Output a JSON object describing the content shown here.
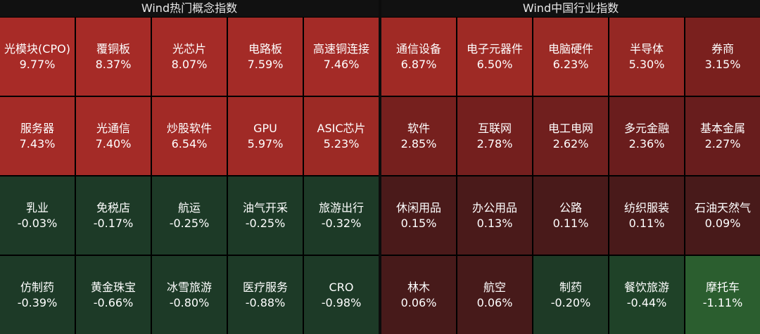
{
  "panels": [
    {
      "title": "Wind热门概念指数",
      "tiles": [
        {
          "label": "光模块(CPO)",
          "value": "9.77%",
          "color": "#a82b27"
        },
        {
          "label": "覆铜板",
          "value": "8.37%",
          "color": "#a62b27"
        },
        {
          "label": "光芯片",
          "value": "8.07%",
          "color": "#a52b27"
        },
        {
          "label": "电路板",
          "value": "7.59%",
          "color": "#a42b27"
        },
        {
          "label": "高速铜连接",
          "value": "7.46%",
          "color": "#a42b27"
        },
        {
          "label": "服务器",
          "value": "7.43%",
          "color": "#a42b27"
        },
        {
          "label": "光通信",
          "value": "7.40%",
          "color": "#a42b27"
        },
        {
          "label": "炒股软件",
          "value": "6.54%",
          "color": "#a22a26"
        },
        {
          "label": "GPU",
          "value": "5.97%",
          "color": "#a02a26"
        },
        {
          "label": "ASIC芯片",
          "value": "5.23%",
          "color": "#9c2a25"
        },
        {
          "label": "乳业",
          "value": "-0.03%",
          "color": "#1d3a27"
        },
        {
          "label": "免税店",
          "value": "-0.17%",
          "color": "#1d3a27"
        },
        {
          "label": "航运",
          "value": "-0.25%",
          "color": "#1d3a27"
        },
        {
          "label": "油气开采",
          "value": "-0.25%",
          "color": "#1d3a27"
        },
        {
          "label": "旅游出行",
          "value": "-0.32%",
          "color": "#1d3a27"
        },
        {
          "label": "仿制药",
          "value": "-0.39%",
          "color": "#1d3a27"
        },
        {
          "label": "黄金珠宝",
          "value": "-0.66%",
          "color": "#1d3a27"
        },
        {
          "label": "冰雪旅游",
          "value": "-0.80%",
          "color": "#1d3a27"
        },
        {
          "label": "医疗服务",
          "value": "-0.88%",
          "color": "#1d3a27"
        },
        {
          "label": "CRO",
          "value": "-0.98%",
          "color": "#1d3a27"
        }
      ]
    },
    {
      "title": "Wind中国行业指数",
      "tiles": [
        {
          "label": "通信设备",
          "value": "6.87%",
          "color": "#a02a25"
        },
        {
          "label": "电子元器件",
          "value": "6.50%",
          "color": "#9e2a25"
        },
        {
          "label": "电脑硬件",
          "value": "6.23%",
          "color": "#9b2a25"
        },
        {
          "label": "半导体",
          "value": "5.30%",
          "color": "#952824"
        },
        {
          "label": "券商",
          "value": "3.15%",
          "color": "#7a201e"
        },
        {
          "label": "软件",
          "value": "2.85%",
          "color": "#76201e"
        },
        {
          "label": "互联网",
          "value": "2.78%",
          "color": "#741f1e"
        },
        {
          "label": "电工电网",
          "value": "2.62%",
          "color": "#701f1e"
        },
        {
          "label": "多元金融",
          "value": "2.36%",
          "color": "#6a1d1d"
        },
        {
          "label": "基本金属",
          "value": "2.27%",
          "color": "#681d1d"
        },
        {
          "label": "休闲用品",
          "value": "0.15%",
          "color": "#4a1a1a"
        },
        {
          "label": "办公用品",
          "value": "0.13%",
          "color": "#4a1a1a"
        },
        {
          "label": "公路",
          "value": "0.11%",
          "color": "#491a1a"
        },
        {
          "label": "纺织服装",
          "value": "0.11%",
          "color": "#491a1a"
        },
        {
          "label": "石油天然气",
          "value": "0.09%",
          "color": "#481a1a"
        },
        {
          "label": "林木",
          "value": "0.06%",
          "color": "#471a1a"
        },
        {
          "label": "航空",
          "value": "0.06%",
          "color": "#471a1a"
        },
        {
          "label": "制药",
          "value": "-0.20%",
          "color": "#1e3a26"
        },
        {
          "label": "餐饮旅游",
          "value": "-0.44%",
          "color": "#1f4228"
        },
        {
          "label": "摩托车",
          "value": "-1.11%",
          "color": "#2b5e2f"
        }
      ]
    }
  ]
}
